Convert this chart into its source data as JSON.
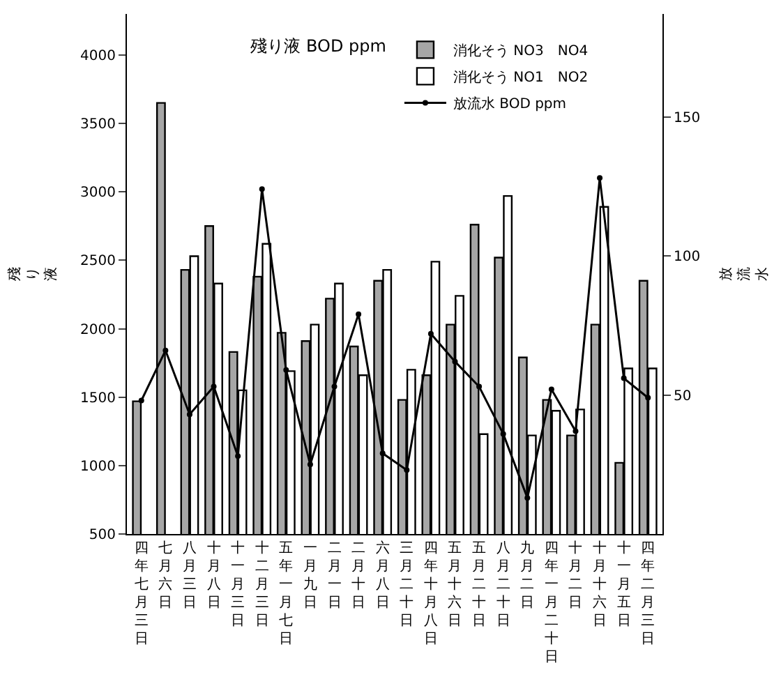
{
  "chart_data": {
    "type": "bar",
    "categories": [
      "四年七月三日",
      "七月六日",
      "八月三日",
      "十月八日",
      "十一月三日",
      "十二月三日",
      "五年一月七日",
      "一月九日",
      "二月一日",
      "二月十日",
      "六月八日",
      "三月二十日",
      "四年十月八日",
      "五月十六日",
      "五月二十日",
      "八月二十日",
      "九月二日",
      "四年一月二十日",
      "十月二日",
      "十月十六日",
      "十一月五日",
      "四年二月三日"
    ],
    "series": [
      {
        "name": "消化そう NO3　NO4",
        "color": "#a6a6a6",
        "values": [
          1470,
          3650,
          2430,
          2750,
          1830,
          2380,
          1970,
          1910,
          2220,
          1870,
          2350,
          1480,
          1660,
          2030,
          2760,
          2520,
          1790,
          1480,
          1220,
          2030,
          1020,
          2350
        ]
      },
      {
        "name": "消化そう NO1　NO2",
        "color": "#ffffff",
        "values": [
          null,
          null,
          2530,
          2330,
          1550,
          2620,
          1690,
          2030,
          2330,
          1660,
          2430,
          1700,
          2490,
          2240,
          1230,
          2970,
          1220,
          1400,
          1410,
          2890,
          1710,
          1710
        ]
      },
      {
        "name": "放流水 BOD ppm",
        "type": "line",
        "axis": "y2",
        "color": "#000000",
        "marker": "circle",
        "values": [
          48,
          66,
          43,
          53,
          28,
          124,
          59,
          25,
          53,
          79,
          29,
          23,
          72,
          62,
          53,
          36,
          13,
          52,
          37,
          128,
          56,
          49
        ]
      }
    ],
    "legend_title": "殘り液 BOD ppm",
    "ylabel": "殘り液",
    "y2label": "放流水",
    "ylim": [
      500,
      4300
    ],
    "yticks": [
      500,
      1000,
      1500,
      2000,
      2500,
      3000,
      3500,
      4000
    ],
    "y2lim": [
      0,
      187
    ],
    "y2ticks": [
      50,
      100,
      150
    ],
    "grid": false,
    "legend": "top"
  }
}
